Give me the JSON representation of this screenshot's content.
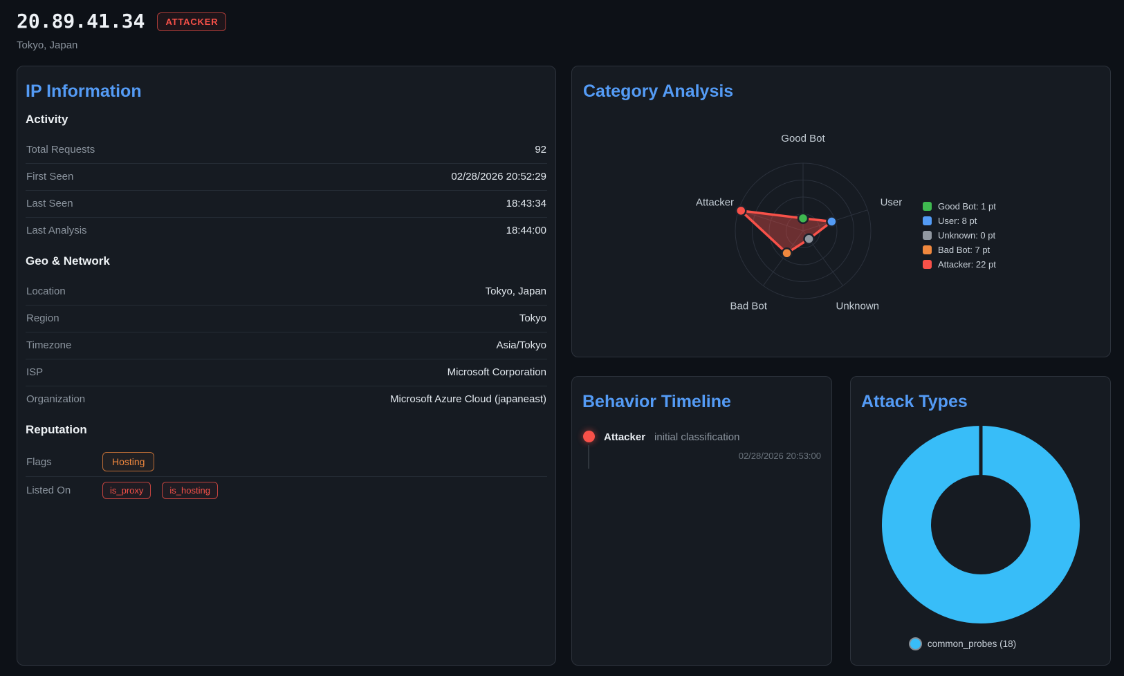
{
  "header": {
    "ip": "20.89.41.34",
    "classification": "ATTACKER",
    "location": "Tokyo, Japan"
  },
  "ip_panel": {
    "title": "IP Information",
    "sections": [
      {
        "title": "Activity",
        "rows": [
          {
            "label": "Total Requests",
            "value": "92"
          },
          {
            "label": "First Seen",
            "value": "02/28/2026 20:52:29"
          },
          {
            "label": "Last Seen",
            "value": "18:43:34"
          },
          {
            "label": "Last Analysis",
            "value": "18:44:00"
          }
        ]
      },
      {
        "title": "Geo & Network",
        "rows": [
          {
            "label": "Location",
            "value": "Tokyo, Japan"
          },
          {
            "label": "Region",
            "value": "Tokyo"
          },
          {
            "label": "Timezone",
            "value": "Asia/Tokyo"
          },
          {
            "label": "ISP",
            "value": "Microsoft Corporation"
          },
          {
            "label": "Organization",
            "value": "Microsoft Azure Cloud (japaneast)"
          }
        ]
      },
      {
        "title": "Reputation",
        "rows": [
          {
            "label": "Flags",
            "badges": [
              "Hosting"
            ]
          },
          {
            "label": "Listed On",
            "badges": [
              "is_proxy",
              "is_hosting"
            ]
          }
        ]
      }
    ]
  },
  "category_panel": {
    "title": "Category Analysis"
  },
  "timeline_panel": {
    "title": "Behavior Timeline",
    "events": [
      {
        "category": "Attacker",
        "description": "initial classification",
        "timestamp": "02/28/2026 20:53:00",
        "color": "#f85149"
      }
    ]
  },
  "attack_panel": {
    "title": "Attack Types"
  },
  "colors": {
    "page_bg": "#0d1117",
    "panel_bg": "#161b22",
    "accent_blue": "#549bf5",
    "danger_red": "#f85149",
    "warning_orange": "#f0883e",
    "donut_blue": "#38bdf8"
  },
  "chart_data": [
    {
      "type": "radar",
      "title": "Category Analysis",
      "categories": [
        "Good Bot",
        "User",
        "Unknown",
        "Bad Bot",
        "Attacker"
      ],
      "values": [
        1,
        8,
        0,
        7,
        22
      ],
      "unit": "pt",
      "max": 22,
      "grid_rings": 4,
      "grid_shape": "circular",
      "colors": [
        "#3fb950",
        "#539bf5",
        "#9198a1",
        "#f0883e",
        "#f85149"
      ],
      "fill_color": "rgba(248,81,73,0.38)",
      "stroke_color": "#f85149",
      "legend": [
        "Good Bot: 1 pt",
        "User: 8 pt",
        "Unknown: 0 pt",
        "Bad Bot: 7 pt",
        "Attacker: 22 pt"
      ],
      "legend_position": "right"
    },
    {
      "type": "donut",
      "title": "Attack Types",
      "categories": [
        "common_probes"
      ],
      "values": [
        18
      ],
      "colors": [
        "#38bdf8"
      ],
      "legend": [
        "common_probes (18)"
      ],
      "legend_position": "bottom"
    }
  ]
}
